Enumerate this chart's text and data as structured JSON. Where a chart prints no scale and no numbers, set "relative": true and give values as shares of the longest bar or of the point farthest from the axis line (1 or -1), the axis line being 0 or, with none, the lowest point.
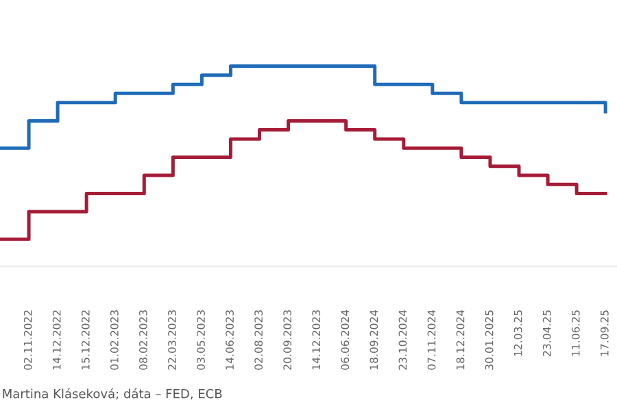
{
  "chart_data": {
    "type": "step",
    "relative": true,
    "categories": [
      null,
      "02.11.2022",
      "14.12.2022",
      "15.12.2022",
      "01.02.2023",
      "08.02.2023",
      "22.03.2023",
      "03.05.2023",
      "14.06.2023",
      "02.08.2023",
      "20.09.2023",
      "14.12.2023",
      "06.06.2024",
      "18.09.2024",
      "23.10.2024",
      "07.11.2024",
      "18.12.2024",
      "30.01.2025",
      "12.03.25",
      "23.04.25",
      "11.06.25",
      "17.09.25"
    ],
    "series": [
      {
        "color": "#1f6bb8",
        "values": [
          0.591,
          0.727,
          0.818,
          0.818,
          0.864,
          0.864,
          0.909,
          0.955,
          1,
          1,
          1,
          1,
          1,
          0.909,
          0.909,
          0.864,
          0.818,
          0.818,
          0.818,
          0.818,
          0.818,
          0.773
        ]
      },
      {
        "color": "#a51c37",
        "values": [
          0.136,
          0.273,
          0.273,
          0.364,
          0.364,
          0.455,
          0.545,
          0.545,
          0.636,
          0.682,
          0.727,
          0.727,
          0.682,
          0.636,
          0.591,
          0.591,
          0.545,
          0.5,
          0.455,
          0.409,
          0.364,
          0.364
        ]
      }
    ],
    "annotations": [
      "Martina Kláseková; dáta – FED, ECB"
    ]
  }
}
